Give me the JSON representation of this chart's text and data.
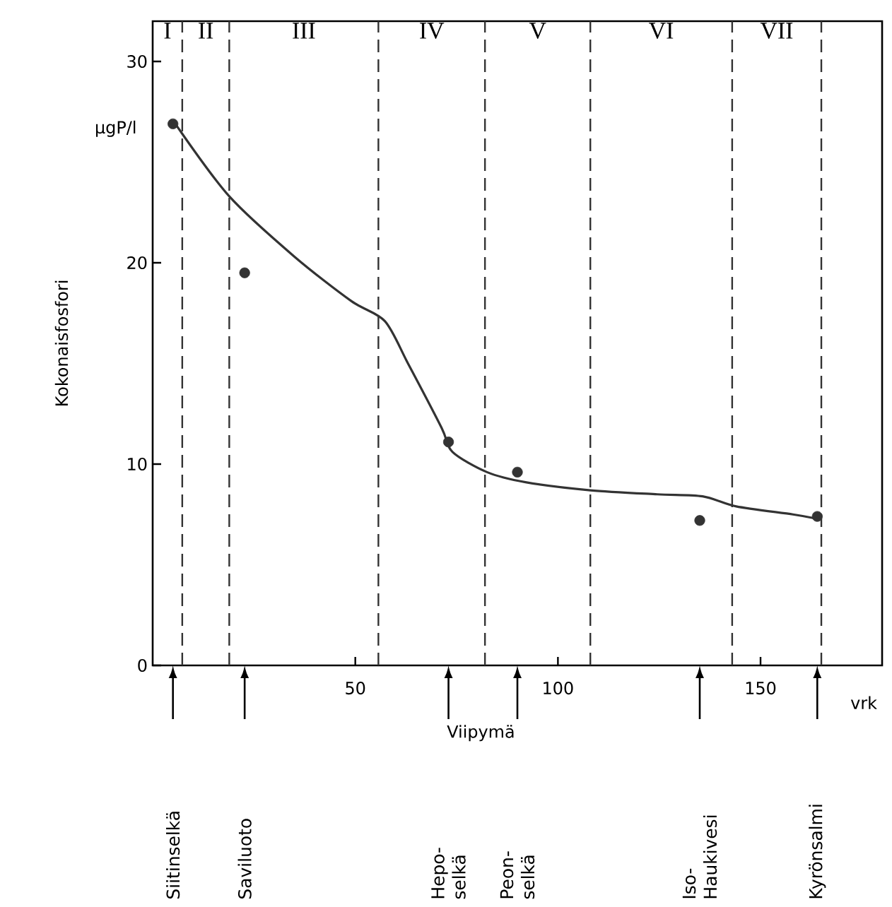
{
  "chart_data": {
    "type": "scatter",
    "marker": "circle",
    "xlabel": "Viipymä",
    "ylabel": "Kokonaisfosfori",
    "xlim": [
      0,
      180
    ],
    "ylim": [
      0,
      32
    ],
    "xticks": [
      50,
      100,
      150
    ],
    "yticks": [
      0,
      10,
      20,
      30
    ],
    "series": [
      {
        "color": "#333333",
        "x": [
          5,
          22.7,
          73,
          90,
          135,
          164
        ],
        "values": [
          26.9,
          19.5,
          11.1,
          9.6,
          7.2,
          7.4
        ]
      },
      {
        "type": "line",
        "marker": "none",
        "color": "#333333",
        "x": [
          5.6,
          18.9,
          35,
          49,
          57.3,
          63,
          71.3,
          74,
          82.5,
          92,
          108,
          124.5,
          135.7,
          144,
          158,
          163.6
        ],
        "values": [
          26.9,
          23.3,
          20.3,
          18.1,
          17.1,
          15,
          11.8,
          10.6,
          9.6,
          9.1,
          8.7,
          8.5,
          8.4,
          7.9,
          7.5,
          7.3
        ]
      }
    ],
    "ref_lines": [
      {
        "axis": "x",
        "value": 7.3,
        "label": "I",
        "line_style": "dashed"
      },
      {
        "axis": "x",
        "value": 18.9,
        "label": "II",
        "line_style": "dashed"
      },
      {
        "axis": "x",
        "value": 55.7,
        "label": "III",
        "line_style": "dashed"
      },
      {
        "axis": "x",
        "value": 82,
        "label": "IV",
        "line_style": "dashed"
      },
      {
        "axis": "x",
        "value": 108,
        "label": "V",
        "line_style": "dashed"
      },
      {
        "axis": "x",
        "value": 143,
        "label": "VI",
        "line_style": "dashed"
      },
      {
        "axis": "x",
        "value": 165,
        "label": "VII",
        "line_style": "dashed"
      }
    ],
    "annotations": [
      "µgP/l",
      "vrk",
      "Siitinselkä",
      "Saviluoto",
      "Hepo- selkä",
      "Peon- selkä",
      "Iso- Haukivesi",
      "Kyrönsalmi"
    ]
  }
}
